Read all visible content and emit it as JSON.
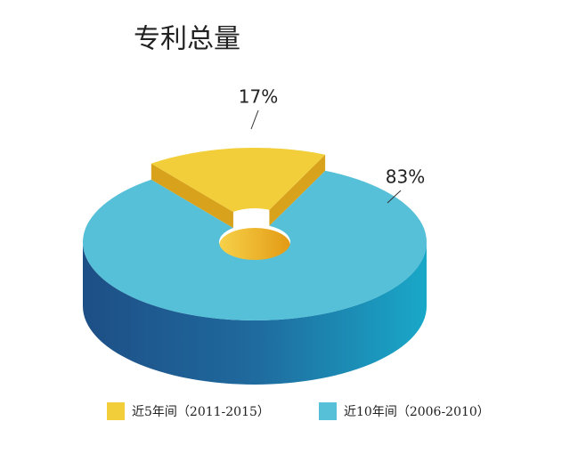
{
  "chart_data": {
    "type": "pie",
    "title": "专利总量",
    "categories": [
      "近5年间（2011-2015）",
      "近10年间（2006-2010）"
    ],
    "values": [
      17,
      83
    ],
    "value_labels": [
      "17%",
      "83%"
    ],
    "colors": [
      "#f2cf3a",
      "#55c0d8"
    ],
    "legend": "bottom"
  }
}
